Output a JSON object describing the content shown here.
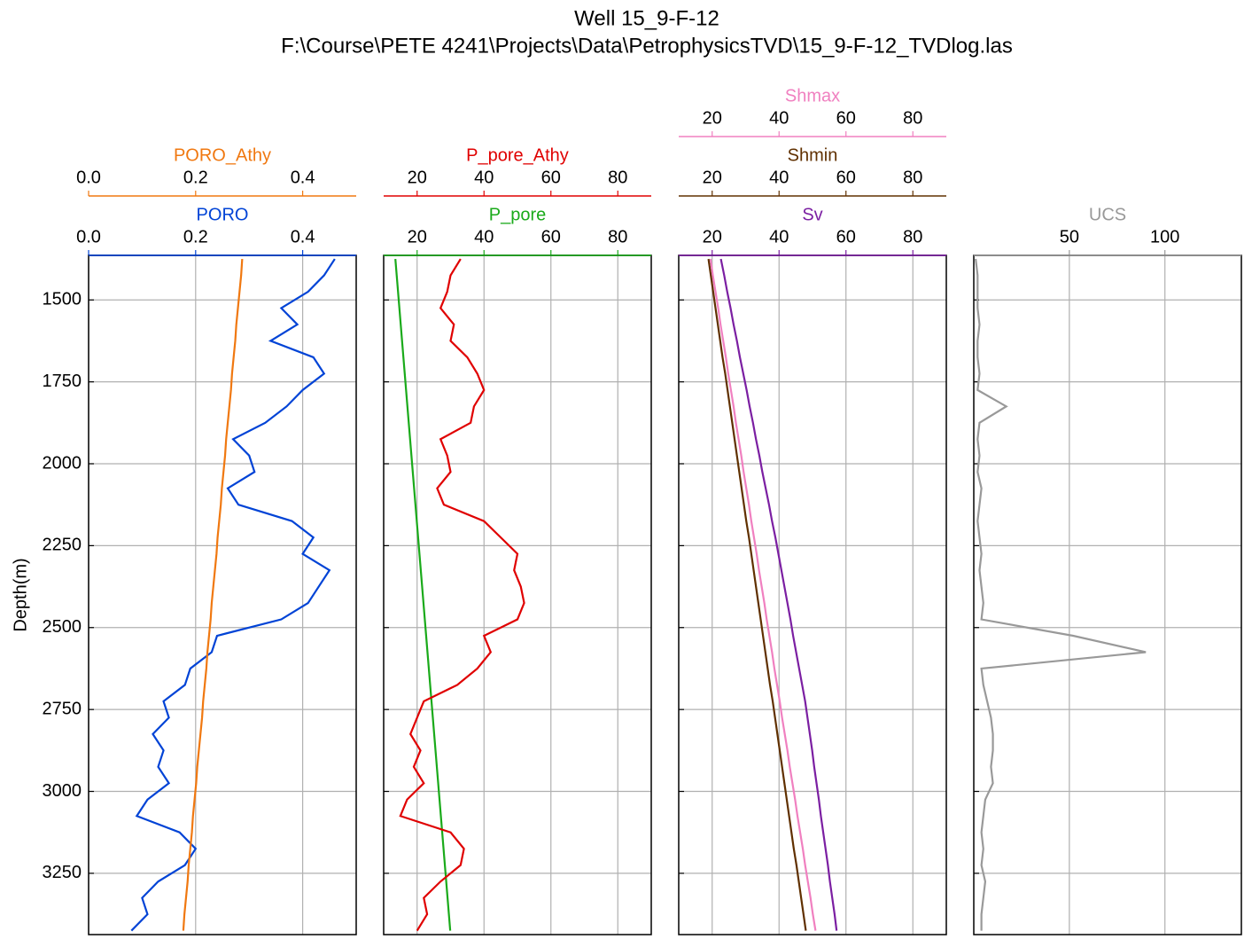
{
  "chart_data": {
    "type": "well_log",
    "title": "Well 15_9-F-12",
    "subtitle": "F:\\Course\\PETE 4241\\Projects\\Data\\PetrophysicsTVD\\15_9-F-12_TVDlog.las",
    "ylabel": "Depth(m)",
    "ylim": [
      1364,
      3437
    ],
    "invert_y": true,
    "yticks": [
      1500,
      1750,
      2000,
      2250,
      2500,
      2750,
      3000,
      3250
    ],
    "grid": true,
    "y": [
      1375,
      1425,
      1475,
      1525,
      1575,
      1625,
      1675,
      1725,
      1775,
      1825,
      1875,
      1925,
      1975,
      2025,
      2075,
      2125,
      2175,
      2225,
      2275,
      2325,
      2375,
      2425,
      2475,
      2525,
      2575,
      2625,
      2675,
      2725,
      2775,
      2825,
      2875,
      2925,
      2975,
      3025,
      3075,
      3125,
      3175,
      3225,
      3275,
      3325,
      3375,
      3425
    ],
    "tracks": [
      {
        "series": [
          {
            "name": "PORO",
            "color": "#0043d6",
            "xlim": [
              0,
              0.5
            ],
            "xticks": [
              {
                "value": 0,
                "label": "0.0"
              },
              0.2,
              0.4
            ],
            "values": [
              0.46,
              0.44,
              0.41,
              0.36,
              0.39,
              0.34,
              0.42,
              0.44,
              0.4,
              0.37,
              0.33,
              0.27,
              0.3,
              0.31,
              0.26,
              0.28,
              0.38,
              0.42,
              0.4,
              0.45,
              0.43,
              0.41,
              0.36,
              0.24,
              0.23,
              0.19,
              0.18,
              0.14,
              0.15,
              0.12,
              0.14,
              0.13,
              0.15,
              0.11,
              0.09,
              0.17,
              0.2,
              0.18,
              0.13,
              0.1,
              0.11,
              0.08
            ]
          },
          {
            "name": "PORO_Athy",
            "color": "#f07810",
            "xlim": [
              0,
              0.5
            ],
            "xticks": [
              {
                "value": 0,
                "label": "0.0"
              },
              0.2,
              0.4
            ],
            "values": [
              0.287,
              0.285,
              0.282,
              0.279,
              0.276,
              0.274,
              0.271,
              0.268,
              0.266,
              0.263,
              0.26,
              0.257,
              0.255,
              0.252,
              0.249,
              0.247,
              0.244,
              0.241,
              0.239,
              0.236,
              0.233,
              0.23,
              0.228,
              0.225,
              0.222,
              0.22,
              0.217,
              0.214,
              0.212,
              0.209,
              0.206,
              0.203,
              0.201,
              0.198,
              0.195,
              0.193,
              0.19,
              0.187,
              0.185,
              0.182,
              0.179,
              0.177
            ]
          }
        ]
      },
      {
        "series": [
          {
            "name": "P_pore",
            "color": "#1aaa1a",
            "xlim": [
              10,
              90
            ],
            "xticks": [
              20,
              40,
              60,
              80
            ],
            "values": [
              13.5,
              13.9,
              14.3,
              14.7,
              15.1,
              15.5,
              15.9,
              16.3,
              16.7,
              17.1,
              17.5,
              17.9,
              18.3,
              18.7,
              19.1,
              19.5,
              19.9,
              20.3,
              20.7,
              21.1,
              21.5,
              21.9,
              22.3,
              22.7,
              23.1,
              23.5,
              23.9,
              24.3,
              24.7,
              25.1,
              25.5,
              25.9,
              26.3,
              26.7,
              27.1,
              27.5,
              27.9,
              28.3,
              28.7,
              29.1,
              29.5,
              29.9
            ]
          },
          {
            "name": "P_pore_Athy",
            "color": "#e00000",
            "xlim": [
              10,
              90
            ],
            "xticks": [
              20,
              40,
              60,
              80
            ],
            "values": [
              33,
              30,
              29,
              27,
              31,
              30,
              35,
              38,
              40,
              37,
              36,
              27,
              29,
              30,
              26,
              28,
              40,
              45,
              50,
              49,
              51,
              52,
              50,
              40,
              42,
              38,
              32,
              22,
              20,
              18,
              21,
              19,
              22,
              17,
              15,
              30,
              34,
              33,
              27,
              22,
              23,
              20
            ]
          }
        ]
      },
      {
        "series": [
          {
            "name": "Sv",
            "color": "#7b1fa2",
            "xlim": [
              10,
              90
            ],
            "xticks": [
              20,
              40,
              60,
              80
            ],
            "values": [
              22.6,
              23.6,
              24.5,
              25.5,
              26.4,
              27.4,
              28.3,
              29.3,
              30.3,
              31.2,
              32.2,
              33.1,
              34.1,
              35.0,
              36.0,
              37.0,
              37.9,
              38.9,
              39.8,
              40.7,
              41.6,
              42.5,
              43.4,
              44.2,
              45.1,
              46.0,
              46.9,
              47.8,
              48.5,
              49.2,
              49.9,
              50.5,
              51.2,
              51.9,
              52.5,
              53.2,
              53.9,
              54.6,
              55.2,
              55.9,
              56.6,
              57.2
            ]
          },
          {
            "name": "Shmin",
            "color": "#603000",
            "xlim": [
              10,
              90
            ],
            "xticks": [
              20,
              40,
              60,
              80
            ],
            "values": [
              18.9,
              19.6,
              20.3,
              21.0,
              21.7,
              22.4,
              23.1,
              23.9,
              24.6,
              25.3,
              26.0,
              26.7,
              27.4,
              28.1,
              28.8,
              29.5,
              30.2,
              31.0,
              31.7,
              32.4,
              33.1,
              33.8,
              34.5,
              35.2,
              35.9,
              36.6,
              37.3,
              38.1,
              38.8,
              39.5,
              40.2,
              40.9,
              41.6,
              42.3,
              43.0,
              43.7,
              44.4,
              45.2,
              45.9,
              46.6,
              47.3,
              48.0
            ]
          },
          {
            "name": "Shmax",
            "color": "#f080c0",
            "xlim": [
              10,
              90
            ],
            "xticks": [
              20,
              40,
              60,
              80
            ],
            "values": [
              19.5,
              20.2,
              21.0,
              21.8,
              22.5,
              23.3,
              24.1,
              24.8,
              25.6,
              26.4,
              27.1,
              27.9,
              28.7,
              29.4,
              30.2,
              31.0,
              31.7,
              32.5,
              33.3,
              34.0,
              34.8,
              35.6,
              36.3,
              37.1,
              37.9,
              38.6,
              39.4,
              40.2,
              40.9,
              41.7,
              42.5,
              43.2,
              44.0,
              44.8,
              45.5,
              46.3,
              47.1,
              47.8,
              48.6,
              49.4,
              50.1,
              50.9
            ]
          }
        ]
      },
      {
        "series": [
          {
            "name": "UCS",
            "color": "#999999",
            "xlim": [
              0,
              140
            ],
            "xticks": [
              50,
              100
            ],
            "values": [
              1,
              2,
              2,
              2,
              3,
              2,
              2,
              3,
              2,
              17,
              3,
              2,
              3,
              2,
              4,
              3,
              2,
              3,
              4,
              3,
              4,
              5,
              4,
              52,
              90,
              4,
              5,
              7,
              9,
              10,
              10,
              9,
              10,
              6,
              5,
              4,
              5,
              4,
              6,
              5,
              4,
              4
            ]
          }
        ]
      }
    ]
  }
}
